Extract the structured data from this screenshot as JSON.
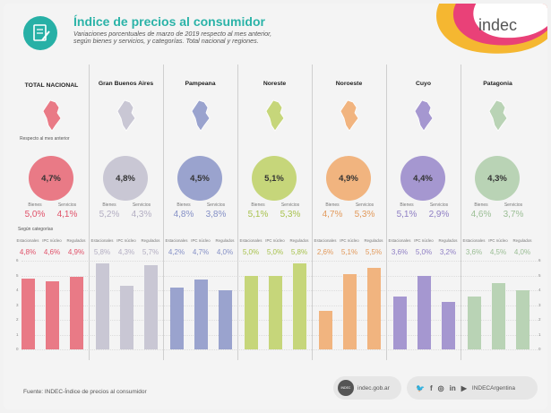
{
  "header": {
    "title": "Índice de precios al consumidor",
    "subtitle": "Variaciones porcentuales de marzo de 2019 respecto al mes anterior, según bienes y servicios, y categorías. Total nacional y regiones.",
    "logo_text": "indec"
  },
  "labels": {
    "respecto": "Respecto al mes anterior",
    "segun_categorias": "Según categorías",
    "bienes": "Bienes",
    "servicios": "Servicios",
    "estacionales": "Estacionales",
    "ipc_nucleo": "IPC núcleo",
    "regulados": "Regulados"
  },
  "footer": {
    "source": "Fuente: INDEC-Índice de precios al consumidor",
    "web": "indec.gob.ar",
    "social": "INDECArgentina"
  },
  "colors": {
    "brand": "#2bb3a8",
    "palette": [
      "#e97a86",
      "#c9c7d4",
      "#9aa3ce",
      "#c6d67a",
      "#f1b47f",
      "#a597d0",
      "#b9d3b5"
    ],
    "text": [
      "#e0526a",
      "#b3aec2",
      "#8590c6",
      "#a8c24e",
      "#e29a5c",
      "#8f7fc4",
      "#9bbe95"
    ]
  },
  "chart_data": {
    "type": "bar",
    "title": "Índice de precios al consumidor",
    "ylim": [
      0,
      6
    ],
    "yticks": [
      0,
      1,
      2,
      3,
      4,
      5,
      6
    ],
    "categories": [
      "Estacionales",
      "IPC núcleo",
      "Regulados"
    ],
    "regions": [
      {
        "name": "TOTAL NACIONAL",
        "general": "4,7%",
        "bienes": "5,0%",
        "servicios": "4,1%",
        "cats": [
          "4,8%",
          "4,6%",
          "4,9%"
        ],
        "values": [
          4.8,
          4.6,
          4.9
        ]
      },
      {
        "name": "Gran Buenos Aires",
        "general": "4,8%",
        "bienes": "5,2%",
        "servicios": "4,3%",
        "cats": [
          "5,8%",
          "4,3%",
          "5,7%"
        ],
        "values": [
          5.8,
          4.3,
          5.7
        ]
      },
      {
        "name": "Pampeana",
        "general": "4,5%",
        "bienes": "4,8%",
        "servicios": "3,8%",
        "cats": [
          "4,2%",
          "4,7%",
          "4,0%"
        ],
        "values": [
          4.2,
          4.7,
          4.0
        ]
      },
      {
        "name": "Noreste",
        "general": "5,1%",
        "bienes": "5,1%",
        "servicios": "5,3%",
        "cats": [
          "5,0%",
          "5,0%",
          "5,8%"
        ],
        "values": [
          5.0,
          5.0,
          5.8
        ]
      },
      {
        "name": "Noroeste",
        "general": "4,9%",
        "bienes": "4,7%",
        "servicios": "5,3%",
        "cats": [
          "2,6%",
          "5,1%",
          "5,5%"
        ],
        "values": [
          2.6,
          5.1,
          5.5
        ]
      },
      {
        "name": "Cuyo",
        "general": "4,4%",
        "bienes": "5,1%",
        "servicios": "2,9%",
        "cats": [
          "3,6%",
          "5,0%",
          "3,2%"
        ],
        "values": [
          3.6,
          5.0,
          3.2
        ]
      },
      {
        "name": "Patagonia",
        "general": "4,3%",
        "bienes": "4,6%",
        "servicios": "3,7%",
        "cats": [
          "3,6%",
          "4,5%",
          "4,0%"
        ],
        "values": [
          3.6,
          4.5,
          4.0
        ]
      }
    ]
  }
}
